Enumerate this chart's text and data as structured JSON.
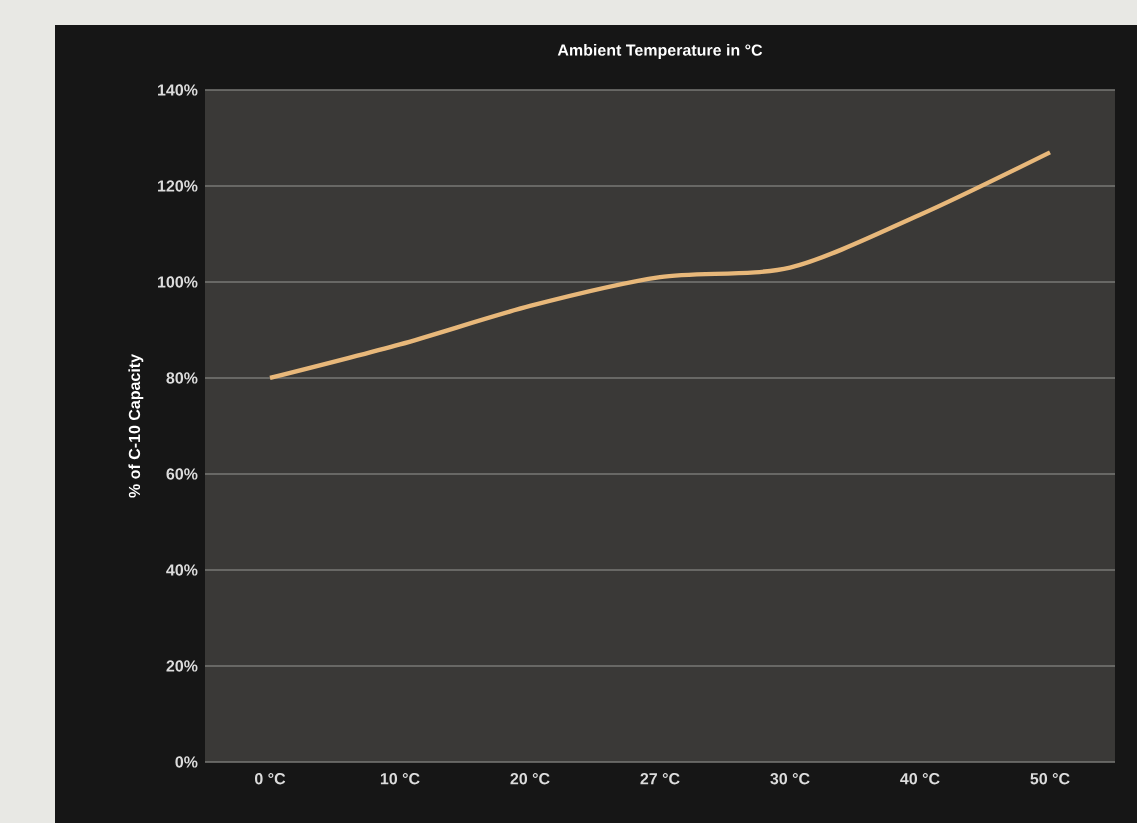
{
  "chart_data": {
    "type": "line",
    "title": "Ambient Temperature in °C",
    "ylabel": "% of C-10 Capacity",
    "categories": [
      "0 °C",
      "10 °C",
      "20 °C",
      "27 °C",
      "30 °C",
      "40 °C",
      "50 °C"
    ],
    "series": [
      {
        "color": "#e8b87a",
        "values": [
          80,
          87,
          95,
          101,
          103,
          114,
          127
        ]
      }
    ],
    "ylim": [
      0,
      140
    ],
    "yticks": [
      {
        "value": 0,
        "label": "0%"
      },
      {
        "value": 20,
        "label": "20%"
      },
      {
        "value": 40,
        "label": "40%"
      },
      {
        "value": 60,
        "label": "60%"
      },
      {
        "value": 80,
        "label": "80%"
      },
      {
        "value": 100,
        "label": "100%"
      },
      {
        "value": 120,
        "label": "120%"
      },
      {
        "value": 140,
        "label": "140%"
      }
    ],
    "grid": "y",
    "marker": "none",
    "line_style": "solid"
  }
}
